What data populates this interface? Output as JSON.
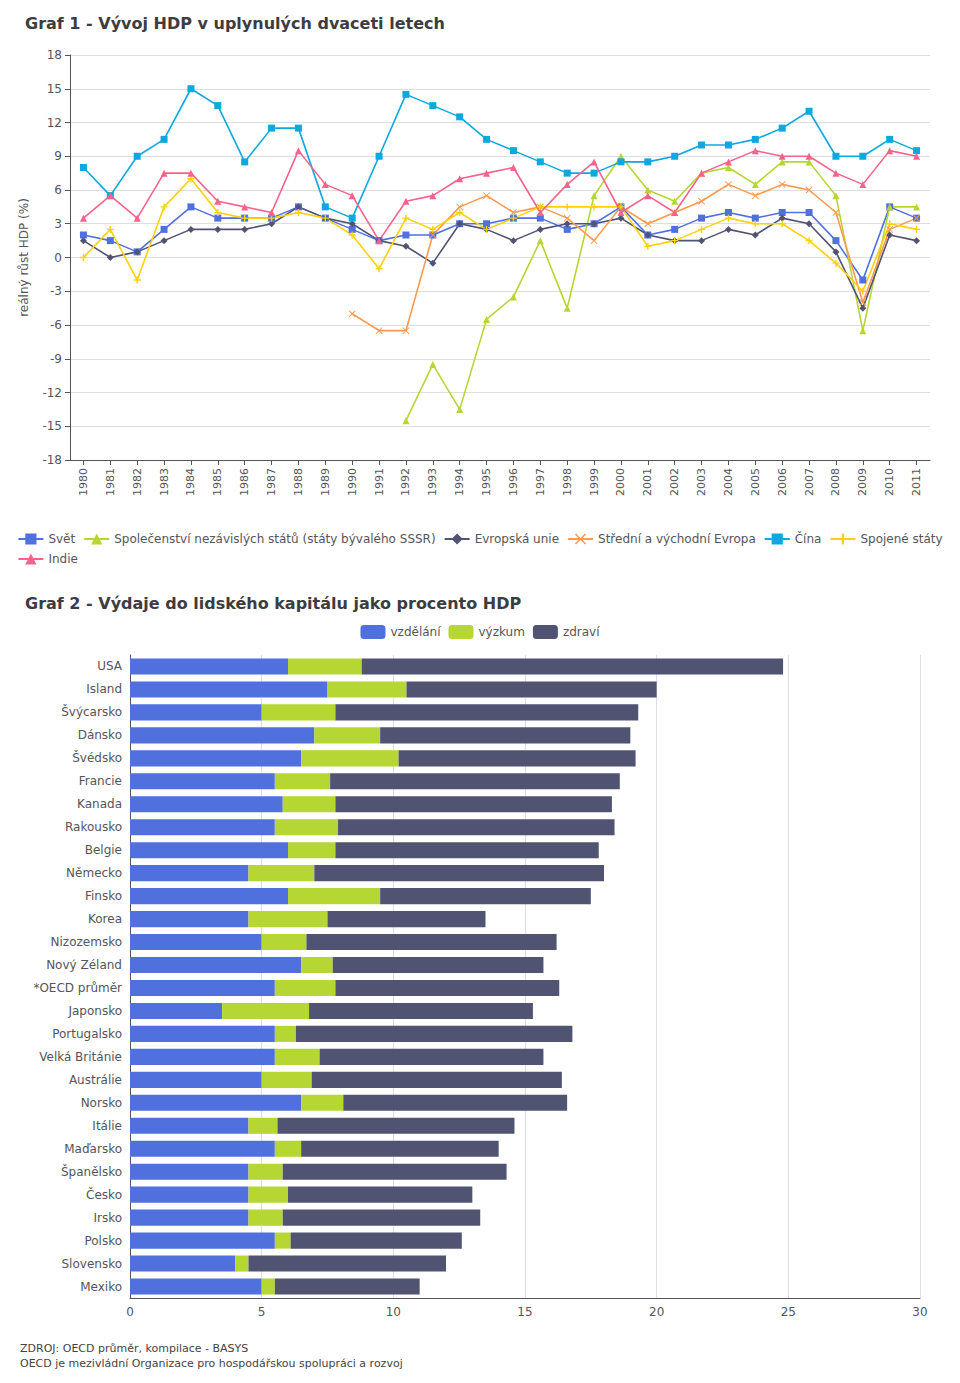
{
  "chart_data": [
    {
      "type": "line",
      "title": "Graf 1 - Vývoj HDP v uplynulých dvaceti letech",
      "x": [
        1980,
        1981,
        1982,
        1983,
        1984,
        1985,
        1986,
        1987,
        1988,
        1989,
        1990,
        1991,
        1992,
        1993,
        1994,
        1995,
        1996,
        1997,
        1998,
        1999,
        2000,
        2001,
        2002,
        2003,
        2004,
        2005,
        2006,
        2007,
        2008,
        2009,
        2010,
        2011
      ],
      "xlim": [
        1979.5,
        2011.5
      ],
      "xticks": [
        1980,
        1981,
        1982,
        1983,
        1984,
        1985,
        1986,
        1987,
        1988,
        1989,
        1990,
        1991,
        1992,
        1993,
        1994,
        1995,
        1996,
        1997,
        1998,
        1999,
        2000,
        2001,
        2002,
        2003,
        2004,
        2005,
        2006,
        2007,
        2008,
        2009,
        2010,
        2011
      ],
      "ylabel": "reálný růst HDP (%)",
      "ylim": [
        -18,
        18
      ],
      "yticks": [
        -18,
        -15,
        -12,
        -9,
        -6,
        -3,
        0,
        3,
        6,
        9,
        12,
        15,
        18
      ],
      "grid": true,
      "legend": "bottom",
      "series": [
        {
          "name": "Svět",
          "marker": "square",
          "values": [
            2.0,
            1.5,
            0.5,
            2.5,
            4.5,
            3.5,
            3.5,
            3.5,
            4.5,
            3.5,
            2.5,
            1.5,
            2.0,
            2.0,
            3.0,
            3.0,
            3.5,
            3.5,
            2.5,
            3.0,
            4.5,
            2.0,
            2.5,
            3.5,
            4.0,
            3.5,
            4.0,
            4.0,
            1.5,
            -2.0,
            4.5,
            3.5
          ]
        },
        {
          "name": "Společenství nezávislých států (státy bývalého SSSR)",
          "marker": "triangle",
          "values": [
            null,
            null,
            null,
            null,
            null,
            null,
            null,
            null,
            null,
            null,
            null,
            null,
            -14.5,
            -9.5,
            -13.5,
            -5.5,
            -3.5,
            1.5,
            -4.5,
            5.5,
            9.0,
            6.0,
            5.0,
            7.5,
            8.0,
            6.5,
            8.5,
            8.5,
            5.5,
            -6.5,
            4.5,
            4.5
          ]
        },
        {
          "name": "Evropská unie",
          "marker": "diamond",
          "values": [
            1.5,
            0.0,
            0.5,
            1.5,
            2.5,
            2.5,
            2.5,
            3.0,
            4.5,
            3.5,
            3.0,
            1.5,
            1.0,
            -0.5,
            3.0,
            2.5,
            1.5,
            2.5,
            3.0,
            3.0,
            3.5,
            2.0,
            1.5,
            1.5,
            2.5,
            2.0,
            3.5,
            3.0,
            0.5,
            -4.5,
            2.0,
            1.5
          ]
        },
        {
          "name": "Střední a východní Evropa",
          "marker": "x",
          "values": [
            null,
            null,
            null,
            null,
            null,
            null,
            null,
            null,
            null,
            null,
            -5.0,
            -6.5,
            -6.5,
            2.0,
            4.5,
            5.5,
            4.0,
            4.5,
            3.5,
            1.5,
            4.5,
            3.0,
            4.0,
            5.0,
            6.5,
            5.5,
            6.5,
            6.0,
            4.0,
            -4.0,
            2.5,
            3.5
          ]
        },
        {
          "name": "Čína",
          "marker": "square",
          "values": [
            8.0,
            5.5,
            9.0,
            10.5,
            15.0,
            13.5,
            8.5,
            11.5,
            11.5,
            4.5,
            3.5,
            9.0,
            14.5,
            13.5,
            12.5,
            10.5,
            9.5,
            8.5,
            7.5,
            7.5,
            8.5,
            8.5,
            9.0,
            10.0,
            10.0,
            10.5,
            11.5,
            13.0,
            9.0,
            9.0,
            10.5,
            9.5
          ]
        },
        {
          "name": "Spojené státy",
          "marker": "plus",
          "values": [
            0.0,
            2.5,
            -2.0,
            4.5,
            7.0,
            4.0,
            3.5,
            3.5,
            4.0,
            3.5,
            2.0,
            -1.0,
            3.5,
            2.5,
            4.0,
            2.5,
            3.5,
            4.5,
            4.5,
            4.5,
            4.5,
            1.0,
            1.5,
            2.5,
            3.5,
            3.0,
            3.0,
            1.5,
            -0.5,
            -3.0,
            3.0,
            2.5
          ]
        },
        {
          "name": "Indie",
          "marker": "triangle",
          "values": [
            3.5,
            5.5,
            3.5,
            7.5,
            7.5,
            5.0,
            4.5,
            4.0,
            9.5,
            6.5,
            5.5,
            1.5,
            5.0,
            5.5,
            7.0,
            7.5,
            8.0,
            4.0,
            6.5,
            8.5,
            4.0,
            5.5,
            4.0,
            7.5,
            8.5,
            9.5,
            9.0,
            9.0,
            7.5,
            6.5,
            9.5,
            9.0
          ]
        }
      ]
    },
    {
      "type": "bar",
      "orientation": "horizontal",
      "stacked": true,
      "title": "Graf 2 - Výdaje do lidského kapitálu jako procento HDP",
      "annotations": [
        "ZDROJ: OECD průměr, kompilace - BASYS\nOECD je mezivládní Organizace pro hospodářskou spolupráci a rozvoj"
      ],
      "categories": [
        "USA",
        "Island",
        "Švýcarsko",
        "Dánsko",
        "Švédsko",
        "Francie",
        "Kanada",
        "Rakousko",
        "Belgie",
        "Německo",
        "Finsko",
        "Korea",
        "Nizozemsko",
        "Nový Zéland",
        "*OECD průměr",
        "Japonsko",
        "Portugalsko",
        "Velká Británie",
        "Austrálie",
        "Norsko",
        "Itálie",
        "Maďarsko",
        "Španělsko",
        "Česko",
        "Irsko",
        "Polsko",
        "Slovensko",
        "Mexiko"
      ],
      "xlim": [
        0,
        30
      ],
      "xticks": [
        0,
        5,
        10,
        15,
        20,
        25,
        30
      ],
      "grid": true,
      "legend": "top",
      "series": [
        {
          "name": "vzdělání",
          "values": [
            6.0,
            7.5,
            5.0,
            7.0,
            6.5,
            5.5,
            5.8,
            5.5,
            6.0,
            4.5,
            6.0,
            4.5,
            5.0,
            6.5,
            5.5,
            3.5,
            5.5,
            5.5,
            5.0,
            6.5,
            4.5,
            5.5,
            4.5,
            4.5,
            4.5,
            5.5,
            4.0,
            5.0
          ]
        },
        {
          "name": "výzkum",
          "values": [
            2.8,
            3.0,
            2.8,
            2.5,
            3.7,
            2.1,
            2.0,
            2.4,
            1.8,
            2.5,
            3.5,
            3.0,
            1.7,
            1.2,
            2.3,
            3.3,
            0.8,
            1.7,
            1.9,
            1.6,
            1.1,
            1.0,
            1.3,
            1.5,
            1.3,
            0.6,
            0.5,
            0.5
          ]
        },
        {
          "name": "zdraví",
          "values": [
            16.0,
            9.5,
            11.5,
            9.5,
            9.0,
            11.0,
            10.5,
            10.5,
            10.0,
            11.0,
            8.0,
            6.0,
            9.5,
            8.0,
            8.5,
            8.5,
            10.5,
            8.5,
            9.5,
            8.5,
            9.0,
            7.5,
            8.5,
            7.0,
            7.5,
            6.5,
            7.5,
            5.5
          ]
        }
      ]
    }
  ]
}
